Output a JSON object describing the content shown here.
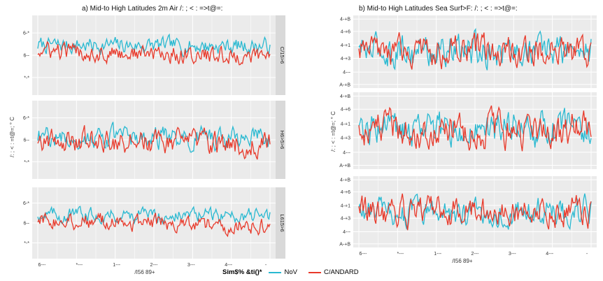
{
  "legend": {
    "title": "Sim$% &ti()*",
    "items": [
      {
        "label": "NoV",
        "color": "#29b9d1"
      },
      {
        "label": "C/ANDARD",
        "color": "#e8392a"
      }
    ]
  },
  "chart_data": [
    {
      "type": "line",
      "title": "a) Mid-to  High Latitudes   2m Air  /: ; < : =>t@=:",
      "xlabel": "/I56  89+",
      "ylabel": "/: ; < : =t@=;  °  C",
      "x_tick_labels": [
        "6---",
        "*---",
        "1---",
        "2---",
        "3---",
        "4---",
        "-"
      ],
      "y_tick_labels": [
        "6-*",
        "6--",
        "*-*"
      ],
      "x_range": [
        0,
        100
      ],
      "panels": [
        {
          "strip": "C/15>6",
          "series": [
            {
              "name": "NoV",
              "level": 0.7,
              "trend": -0.06,
              "noise": 0.45
            },
            {
              "name": "C/ANDARD",
              "level": 0.3,
              "trend": -0.45,
              "noise": 0.5
            }
          ]
        },
        {
          "strip": "H6>5>6",
          "series": [
            {
              "name": "NoV",
              "level": 0.2,
              "trend": -0.1,
              "noise": 0.6
            },
            {
              "name": "C/ANDARD",
              "level": 0.05,
              "trend": -0.3,
              "noise": 0.7
            }
          ]
        },
        {
          "strip": "L615>6",
          "series": [
            {
              "name": "NoV",
              "level": 0.65,
              "trend": -0.05,
              "noise": 0.45
            },
            {
              "name": "C/ANDARD",
              "level": 0.25,
              "trend": -0.55,
              "noise": 0.5
            }
          ]
        }
      ]
    },
    {
      "type": "line",
      "title": "b) Mid-to  High Latitudes   Sea Surf>F:  /: ; < : =>t@=:",
      "xlabel": "/I56  89+",
      "ylabel": "/: ; < : =t@=;  °  C",
      "x_tick_labels": [
        "6---",
        "*---",
        "1---",
        "2---",
        "3---",
        "4---",
        "-"
      ],
      "y_tick_labels": [
        "4-+B",
        "4-+6",
        "4-+1",
        "4-+3",
        "4---",
        "A-+B"
      ],
      "x_range": [
        0,
        100
      ],
      "panels": [
        {
          "strip": "",
          "series": [
            {
              "name": "NoV",
              "level": 0.1,
              "trend": 0.0,
              "noise": 1.0
            },
            {
              "name": "C/ANDARD",
              "level": 0.0,
              "trend": 0.0,
              "noise": 0.9
            }
          ]
        },
        {
          "strip": "",
          "series": [
            {
              "name": "NoV",
              "level": 0.0,
              "trend": 0.0,
              "noise": 1.0
            },
            {
              "name": "C/ANDARD",
              "level": 0.05,
              "trend": 0.0,
              "noise": 1.0
            }
          ]
        },
        {
          "strip": "",
          "series": [
            {
              "name": "NoV",
              "level": -0.05,
              "trend": 0.0,
              "noise": 0.9
            },
            {
              "name": "C/ANDARD",
              "level": 0.05,
              "trend": 0.0,
              "noise": 0.9
            }
          ]
        }
      ]
    }
  ]
}
